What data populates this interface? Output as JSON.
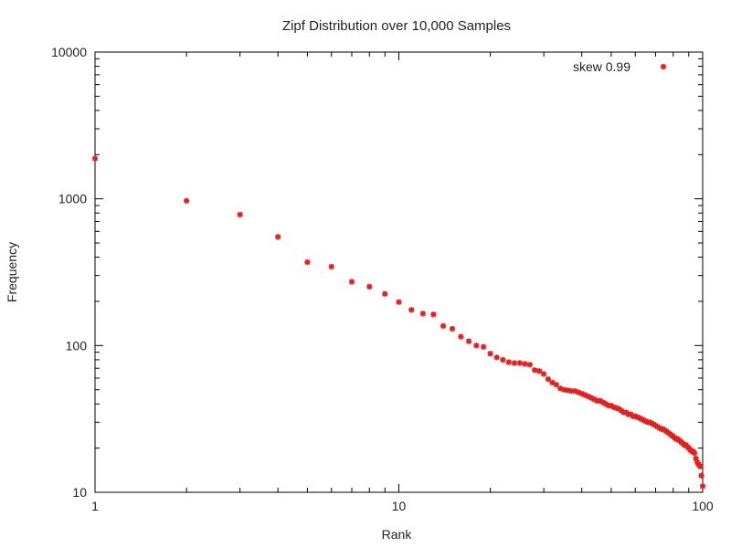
{
  "chart_data": {
    "type": "scatter",
    "title": "Zipf Distribution over 10,000 Samples",
    "xlabel": "Rank",
    "ylabel": "Frequency",
    "x_scale": "log",
    "y_scale": "log",
    "xlim": [
      1,
      100
    ],
    "ylim": [
      10,
      10000
    ],
    "x_ticks": [
      1,
      10,
      100
    ],
    "y_ticks": [
      10,
      100,
      1000,
      10000
    ],
    "x_tick_labels": [
      "1",
      "10",
      "100"
    ],
    "y_tick_labels": [
      "10",
      "100",
      "1000",
      "10000"
    ],
    "grid": false,
    "legend_position": "top-right",
    "series": [
      {
        "name": "skew 0.99",
        "color": "#dd2222",
        "marker": "star",
        "points": [
          [
            1,
            1880
          ],
          [
            2,
            970
          ],
          [
            3,
            780
          ],
          [
            4,
            550
          ],
          [
            5,
            370
          ],
          [
            6,
            345
          ],
          [
            7,
            272
          ],
          [
            8,
            252
          ],
          [
            9,
            225
          ],
          [
            10,
            198
          ],
          [
            11,
            175
          ],
          [
            12,
            165
          ],
          [
            13,
            163
          ],
          [
            14,
            136
          ],
          [
            15,
            130
          ],
          [
            16,
            115
          ],
          [
            17,
            107
          ],
          [
            18,
            100
          ],
          [
            19,
            98
          ],
          [
            20,
            88
          ],
          [
            21,
            83
          ],
          [
            22,
            80
          ],
          [
            23,
            77
          ],
          [
            24,
            76
          ],
          [
            25,
            76
          ],
          [
            26,
            75
          ],
          [
            27,
            74
          ],
          [
            28,
            68
          ],
          [
            29,
            67
          ],
          [
            30,
            64
          ],
          [
            31,
            59
          ],
          [
            32,
            56
          ],
          [
            33,
            54
          ],
          [
            34,
            51
          ],
          [
            35,
            50
          ],
          [
            36,
            49.5
          ],
          [
            37,
            49
          ],
          [
            38,
            49
          ],
          [
            39,
            48
          ],
          [
            40,
            47
          ],
          [
            41,
            46
          ],
          [
            42,
            45
          ],
          [
            43,
            44
          ],
          [
            44,
            43
          ],
          [
            45,
            42
          ],
          [
            46,
            42
          ],
          [
            47,
            41
          ],
          [
            48,
            40
          ],
          [
            49,
            39
          ],
          [
            50,
            39
          ],
          [
            51,
            38
          ],
          [
            52,
            37.5
          ],
          [
            53,
            37
          ],
          [
            54,
            36
          ],
          [
            55,
            35
          ],
          [
            56,
            35
          ],
          [
            57,
            34
          ],
          [
            58,
            34
          ],
          [
            59,
            33
          ],
          [
            60,
            33
          ],
          [
            61,
            32.5
          ],
          [
            62,
            32
          ],
          [
            63,
            31.5
          ],
          [
            64,
            31
          ],
          [
            65,
            30.5
          ],
          [
            66,
            30
          ],
          [
            67,
            30
          ],
          [
            68,
            29.5
          ],
          [
            69,
            29
          ],
          [
            70,
            28.5
          ],
          [
            71,
            28
          ],
          [
            72,
            27.5
          ],
          [
            73,
            27
          ],
          [
            74,
            27
          ],
          [
            75,
            26.5
          ],
          [
            76,
            26
          ],
          [
            77,
            25.5
          ],
          [
            78,
            25
          ],
          [
            79,
            24.5
          ],
          [
            80,
            24
          ],
          [
            81,
            23.5
          ],
          [
            82,
            23
          ],
          [
            83,
            23
          ],
          [
            84,
            22.5
          ],
          [
            85,
            22
          ],
          [
            86,
            21.5
          ],
          [
            87,
            21
          ],
          [
            88,
            21
          ],
          [
            89,
            20.5
          ],
          [
            90,
            20
          ],
          [
            91,
            19.5
          ],
          [
            92,
            19
          ],
          [
            93,
            19
          ],
          [
            94,
            18.5
          ],
          [
            95,
            17
          ],
          [
            96,
            16
          ],
          [
            97,
            15.5
          ],
          [
            98,
            15
          ],
          [
            99,
            13
          ],
          [
            100,
            11
          ]
        ]
      }
    ]
  }
}
